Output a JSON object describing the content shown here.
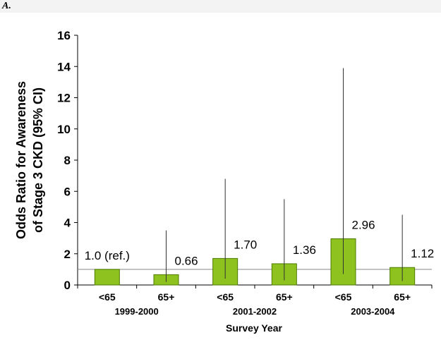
{
  "panel_label": "A.",
  "colors": {
    "bar_fill": "#8dc21f",
    "bar_stroke": "#4d7a00",
    "whisker": "#333333",
    "ref_line": "#888888",
    "axis": "#000000",
    "band": "#f3f3f3"
  },
  "chart_data": {
    "type": "bar",
    "title": "",
    "xlabel": "Survey Year",
    "ylabel_lines": [
      "Odds Ratio for Awareness",
      "of Stage 3 CKD (95% CI)"
    ],
    "ylim": [
      0,
      16
    ],
    "yticks": [
      0,
      2,
      4,
      6,
      8,
      10,
      12,
      14,
      16
    ],
    "grid": false,
    "reference_line": 1,
    "categories": [
      "<65",
      "65+",
      "<65",
      "65+",
      "<65",
      "65+"
    ],
    "groups": [
      "1999-2000",
      "2001-2002",
      "2003-2004"
    ],
    "values": [
      1.0,
      0.66,
      1.7,
      1.36,
      2.96,
      1.12
    ],
    "ci_low": [
      1.0,
      0.2,
      0.4,
      0.3,
      0.7,
      0.25
    ],
    "ci_high": [
      1.0,
      3.5,
      6.8,
      5.5,
      13.9,
      4.5
    ],
    "data_labels": [
      "1.0 (ref.)",
      "0.66",
      "1.70",
      "1.36",
      "2.96",
      "1.12"
    ]
  }
}
